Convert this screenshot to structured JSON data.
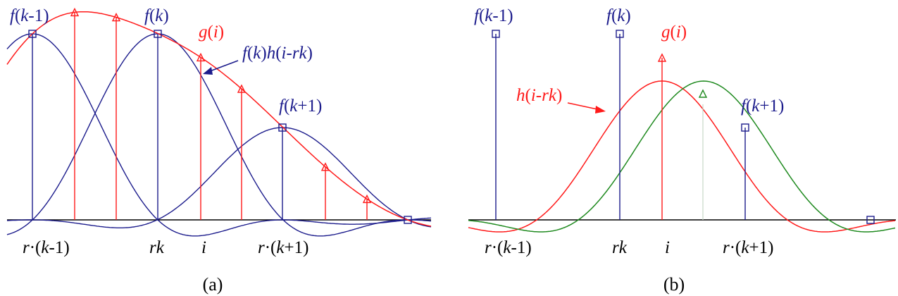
{
  "colors": {
    "navy": "#1c1c8c",
    "red": "#ff1a1a",
    "green": "#1f8a1f",
    "axis": "#000000",
    "faint": "#c8d8c8"
  },
  "icons": {
    "sample_marker": "square-marker-icon",
    "interp_marker": "triangle-marker-icon"
  },
  "panel_a": {
    "caption": "(a)",
    "labels": {
      "f_km1": [
        "f",
        "(",
        "k",
        "-1)"
      ],
      "f_k": [
        "f",
        "(",
        "k",
        ")"
      ],
      "g_i": [
        "g",
        "(",
        "i",
        ")"
      ],
      "fkh": [
        "f",
        "(",
        "k",
        ")",
        "h",
        "(",
        "i-rk",
        ")"
      ],
      "f_kp1": [
        "f",
        "(",
        "k",
        "+1)"
      ],
      "x_rkm1": [
        "r",
        "·(",
        "k",
        "-1)"
      ],
      "x_rk": [
        "rk"
      ],
      "x_i": [
        "i"
      ],
      "x_rkp1": [
        "r",
        "·(",
        "k",
        "+1)"
      ]
    }
  },
  "panel_b": {
    "caption": "(b)",
    "labels": {
      "f_km1": [
        "f",
        "(",
        "k",
        "-1)"
      ],
      "f_k": [
        "f",
        "(",
        "k",
        ")"
      ],
      "g_i": [
        "g",
        "(",
        "i",
        ")"
      ],
      "h_irk": [
        "h",
        "(",
        "i-rk",
        ")"
      ],
      "f_kp1": [
        "f",
        "(",
        "k",
        "+1)"
      ],
      "x_rkm1": [
        "r",
        "·(",
        "k",
        "-1)"
      ],
      "x_rk": [
        "rk"
      ],
      "x_i": [
        "i"
      ],
      "x_rkp1": [
        "r",
        "·(",
        "k",
        "+1)"
      ]
    }
  }
}
